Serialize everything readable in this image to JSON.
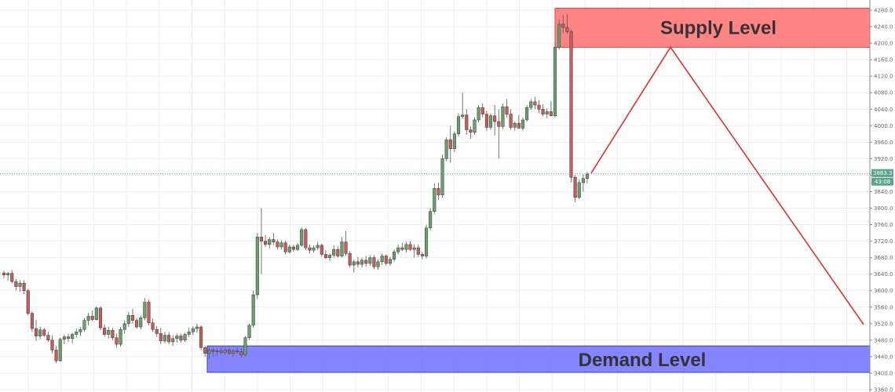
{
  "chart_data": {
    "type": "candlestick",
    "ylim": [
      3376,
      4290
    ],
    "y_ticks": [
      "4280.0",
      "4240.0",
      "4200.0",
      "4160.0",
      "4120.0",
      "4080.0",
      "4040.0",
      "4000.0",
      "3960.0",
      "3920.0",
      "3880.0",
      "3840.0",
      "3800.0",
      "3760.0",
      "3720.0",
      "3680.0",
      "3640.0",
      "3600.0",
      "3560.0",
      "3520.0",
      "3480.0",
      "3440.0",
      "3400.0",
      "3360.0"
    ],
    "y_tick_values": [
      4280,
      4240,
      4200,
      4160,
      4120,
      4080,
      4040,
      4000,
      3960,
      3920,
      3880,
      3840,
      3800,
      3760,
      3720,
      3680,
      3640,
      3600,
      3560,
      3520,
      3480,
      3440,
      3400,
      3360
    ],
    "current_price": 3883.3,
    "current_price_label": "3883.3",
    "countdown_label": "43:08",
    "grid": true,
    "supply_zone": {
      "label": "Supply Level",
      "low": 4190,
      "high": 4285,
      "color": "#ff7070"
    },
    "demand_zone": {
      "label": "Demand Level",
      "low": 3402,
      "high": 3466,
      "color": "#7070ff"
    },
    "projection": [
      [
        753,
        3885
      ],
      [
        854,
        4190
      ],
      [
        1100,
        3518
      ]
    ],
    "colors": {
      "up": "#6aa06a",
      "down": "#cc5a5a",
      "projection": "#dd3333",
      "price_line": "#5aa48a"
    },
    "candles_ohlc": [
      [
        3643,
        3648,
        3630,
        3638
      ],
      [
        3638,
        3645,
        3624,
        3642
      ],
      [
        3642,
        3650,
        3618,
        3622
      ],
      [
        3622,
        3628,
        3600,
        3610
      ],
      [
        3610,
        3625,
        3598,
        3618
      ],
      [
        3618,
        3625,
        3592,
        3600
      ],
      [
        3600,
        3604,
        3540,
        3545
      ],
      [
        3545,
        3550,
        3500,
        3508
      ],
      [
        3508,
        3530,
        3478,
        3490
      ],
      [
        3490,
        3512,
        3482,
        3505
      ],
      [
        3505,
        3510,
        3488,
        3492
      ],
      [
        3492,
        3500,
        3476,
        3480
      ],
      [
        3480,
        3492,
        3448,
        3456
      ],
      [
        3456,
        3466,
        3424,
        3430
      ],
      [
        3430,
        3486,
        3428,
        3482
      ],
      [
        3482,
        3494,
        3470,
        3488
      ],
      [
        3488,
        3496,
        3476,
        3484
      ],
      [
        3484,
        3498,
        3472,
        3494
      ],
      [
        3494,
        3508,
        3486,
        3500
      ],
      [
        3500,
        3512,
        3490,
        3506
      ],
      [
        3506,
        3534,
        3500,
        3528
      ],
      [
        3528,
        3546,
        3516,
        3538
      ],
      [
        3538,
        3552,
        3526,
        3530
      ],
      [
        3530,
        3562,
        3528,
        3558
      ],
      [
        3558,
        3562,
        3504,
        3510
      ],
      [
        3510,
        3518,
        3488,
        3494
      ],
      [
        3494,
        3512,
        3484,
        3504
      ],
      [
        3504,
        3510,
        3480,
        3486
      ],
      [
        3486,
        3496,
        3462,
        3470
      ],
      [
        3470,
        3512,
        3464,
        3506
      ],
      [
        3506,
        3528,
        3496,
        3520
      ],
      [
        3520,
        3548,
        3512,
        3540
      ],
      [
        3540,
        3556,
        3520,
        3528
      ],
      [
        3528,
        3534,
        3508,
        3512
      ],
      [
        3512,
        3540,
        3506,
        3534
      ],
      [
        3534,
        3582,
        3528,
        3572
      ],
      [
        3572,
        3578,
        3516,
        3522
      ],
      [
        3522,
        3532,
        3500,
        3506
      ],
      [
        3506,
        3514,
        3488,
        3496
      ],
      [
        3496,
        3510,
        3470,
        3478
      ],
      [
        3478,
        3500,
        3472,
        3492
      ],
      [
        3492,
        3500,
        3470,
        3476
      ],
      [
        3476,
        3492,
        3466,
        3484
      ],
      [
        3484,
        3496,
        3474,
        3490
      ],
      [
        3490,
        3496,
        3474,
        3480
      ],
      [
        3480,
        3498,
        3476,
        3494
      ],
      [
        3494,
        3510,
        3488,
        3500
      ],
      [
        3500,
        3514,
        3492,
        3508
      ],
      [
        3508,
        3520,
        3498,
        3512
      ],
      [
        3512,
        3516,
        3456,
        3462
      ],
      [
        3462,
        3466,
        3440,
        3448
      ],
      [
        3448,
        3462,
        3436,
        3456
      ],
      [
        3456,
        3462,
        3440,
        3452
      ],
      [
        3452,
        3460,
        3442,
        3454
      ],
      [
        3454,
        3462,
        3446,
        3450
      ],
      [
        3450,
        3462,
        3444,
        3456
      ],
      [
        3456,
        3462,
        3444,
        3448
      ],
      [
        3448,
        3458,
        3440,
        3454
      ],
      [
        3454,
        3462,
        3446,
        3452
      ],
      [
        3452,
        3460,
        3438,
        3444
      ],
      [
        3444,
        3490,
        3440,
        3486
      ],
      [
        3486,
        3520,
        3480,
        3516
      ],
      [
        3516,
        3600,
        3510,
        3590
      ],
      [
        3590,
        3740,
        3580,
        3730
      ],
      [
        3730,
        3800,
        3640,
        3720
      ],
      [
        3720,
        3735,
        3706,
        3712
      ],
      [
        3712,
        3730,
        3702,
        3724
      ],
      [
        3724,
        3740,
        3710,
        3718
      ],
      [
        3718,
        3724,
        3700,
        3706
      ],
      [
        3706,
        3722,
        3700,
        3716
      ],
      [
        3716,
        3722,
        3688,
        3694
      ],
      [
        3694,
        3712,
        3690,
        3706
      ],
      [
        3706,
        3712,
        3694,
        3700
      ],
      [
        3700,
        3716,
        3696,
        3710
      ],
      [
        3710,
        3754,
        3706,
        3748
      ],
      [
        3748,
        3752,
        3698,
        3704
      ],
      [
        3704,
        3712,
        3690,
        3698
      ],
      [
        3698,
        3710,
        3692,
        3704
      ],
      [
        3704,
        3718,
        3698,
        3710
      ],
      [
        3710,
        3714,
        3682,
        3688
      ],
      [
        3688,
        3698,
        3676,
        3680
      ],
      [
        3680,
        3690,
        3672,
        3686
      ],
      [
        3686,
        3710,
        3680,
        3700
      ],
      [
        3700,
        3708,
        3680,
        3684
      ],
      [
        3684,
        3730,
        3680,
        3718
      ],
      [
        3718,
        3745,
        3684,
        3690
      ],
      [
        3690,
        3696,
        3656,
        3662
      ],
      [
        3662,
        3676,
        3644,
        3670
      ],
      [
        3670,
        3682,
        3656,
        3664
      ],
      [
        3664,
        3680,
        3656,
        3674
      ],
      [
        3674,
        3684,
        3658,
        3666
      ],
      [
        3666,
        3686,
        3660,
        3680
      ],
      [
        3680,
        3686,
        3652,
        3658
      ],
      [
        3658,
        3676,
        3650,
        3670
      ],
      [
        3670,
        3690,
        3662,
        3684
      ],
      [
        3684,
        3688,
        3660,
        3666
      ],
      [
        3666,
        3682,
        3660,
        3676
      ],
      [
        3676,
        3700,
        3670,
        3694
      ],
      [
        3694,
        3712,
        3688,
        3704
      ],
      [
        3704,
        3716,
        3696,
        3700
      ],
      [
        3700,
        3718,
        3692,
        3712
      ],
      [
        3712,
        3720,
        3696,
        3700
      ],
      [
        3700,
        3712,
        3680,
        3704
      ],
      [
        3704,
        3712,
        3682,
        3688
      ],
      [
        3688,
        3694,
        3676,
        3684
      ],
      [
        3684,
        3760,
        3678,
        3752
      ],
      [
        3752,
        3800,
        3746,
        3792
      ],
      [
        3792,
        3860,
        3786,
        3848
      ],
      [
        3848,
        3862,
        3820,
        3832
      ],
      [
        3832,
        3930,
        3826,
        3920
      ],
      [
        3920,
        3972,
        3914,
        3966
      ],
      [
        3966,
        4000,
        3910,
        3944
      ],
      [
        3944,
        3986,
        3936,
        3980
      ],
      [
        3980,
        4030,
        3974,
        4022
      ],
      [
        4022,
        4080,
        4016,
        4026
      ],
      [
        4026,
        4040,
        3978,
        3990
      ],
      [
        3990,
        3998,
        3968,
        3984
      ],
      [
        3984,
        4020,
        3978,
        4014
      ],
      [
        4014,
        4050,
        4008,
        4044
      ],
      [
        4044,
        4054,
        4020,
        4028
      ],
      [
        4028,
        4036,
        3988,
        3996
      ],
      [
        3996,
        4030,
        3990,
        4024
      ],
      [
        4024,
        4050,
        3976,
        4010
      ],
      [
        4010,
        4040,
        3920,
        3998
      ],
      [
        3998,
        4054,
        3992,
        4046
      ],
      [
        4046,
        4064,
        4020,
        4028
      ],
      [
        4028,
        4040,
        3990,
        3996
      ],
      [
        3996,
        4010,
        3988,
        4006
      ],
      [
        4006,
        4026,
        3996,
        3994
      ],
      [
        3994,
        4020,
        3988,
        4014
      ],
      [
        4014,
        4050,
        4010,
        4044
      ],
      [
        4044,
        4064,
        4038,
        4058
      ],
      [
        4058,
        4070,
        4040,
        4050
      ],
      [
        4050,
        4062,
        4030,
        4040
      ],
      [
        4040,
        4052,
        4022,
        4028
      ],
      [
        4028,
        4042,
        4018,
        4034
      ],
      [
        4034,
        4060,
        4026,
        4024
      ],
      [
        4024,
        4200,
        4020,
        4190
      ],
      [
        4190,
        4258,
        4184,
        4246
      ],
      [
        4246,
        4268,
        4224,
        4238
      ],
      [
        4238,
        4270,
        4222,
        4228
      ],
      [
        4228,
        4234,
        3862,
        3875
      ],
      [
        3875,
        3880,
        3814,
        3826
      ],
      [
        3826,
        3870,
        3822,
        3862
      ],
      [
        3862,
        3882,
        3840,
        3872
      ],
      [
        3872,
        3888,
        3860,
        3883
      ]
    ]
  }
}
